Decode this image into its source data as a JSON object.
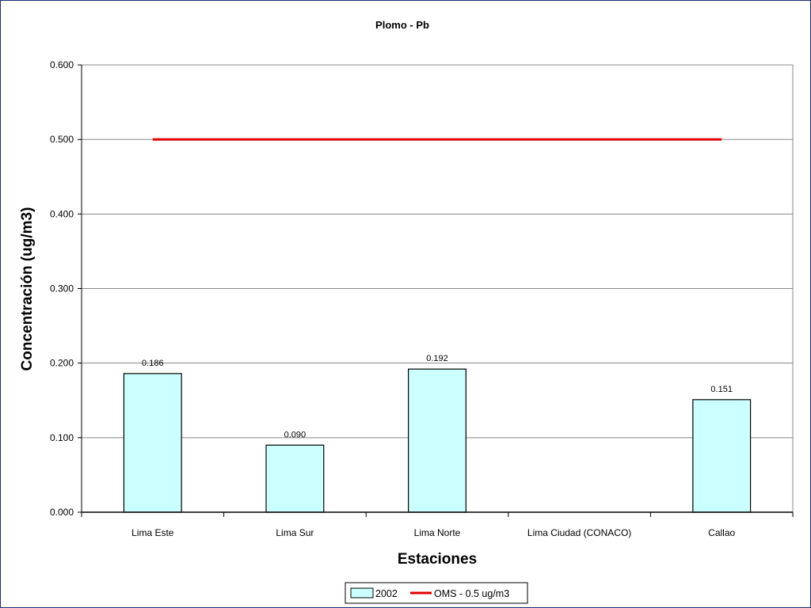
{
  "chart_data": {
    "type": "bar",
    "title": "Plomo - Pb",
    "xlabel": "Estaciones",
    "ylabel": "Concentración (ug/m3)",
    "categories": [
      "Lima Este",
      "Lima Sur",
      "Lima Norte",
      "Lima Ciudad (CONACO)",
      "Callao"
    ],
    "series": [
      {
        "name": "2002",
        "type": "bar",
        "values": [
          0.186,
          0.09,
          0.192,
          null,
          0.151
        ],
        "labels": [
          "0.186",
          "0.090",
          "0.192",
          "",
          "0.151"
        ],
        "fill": "#ccffff",
        "stroke": "#000000"
      },
      {
        "name": "OMS - 0.5 ug/m3",
        "type": "line",
        "values": [
          0.5,
          0.5,
          0.5,
          0.5,
          0.5
        ],
        "color": "#e00000"
      }
    ],
    "ylim": [
      0,
      0.6
    ],
    "yticks": [
      0,
      0.1,
      0.2,
      0.3,
      0.4,
      0.5,
      0.6
    ],
    "ytick_labels": [
      "0.000",
      "0.100",
      "0.200",
      "0.300",
      "0.400",
      "0.500",
      "0.600"
    ],
    "grid": true,
    "legend_position": "bottom-center"
  },
  "colors": {
    "frame_border": "#1c2f6e",
    "grid": "#888888",
    "bar_fill": "#ccffff",
    "reference_line": "#e00000"
  }
}
